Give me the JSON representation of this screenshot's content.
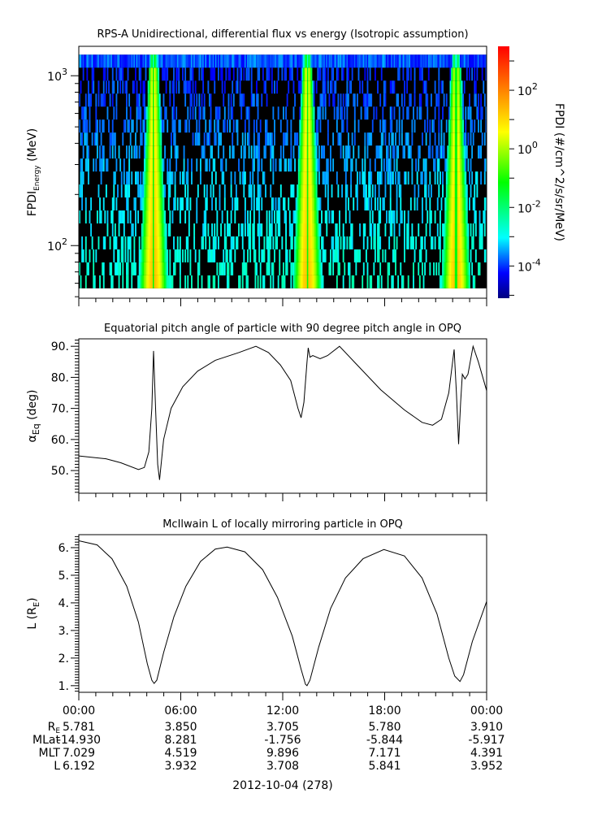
{
  "chart_data": [
    {
      "type": "heatmap",
      "title": "RPS-A Unidirectional, differential flux vs energy (Isotropic assumption)",
      "ylabel_main": "FPDI",
      "ylabel_sub": "Energy",
      "ylabel_unit": "(MeV)",
      "yscale": "log",
      "ylim": [
        49,
        1490
      ],
      "energy_range_mev": [
        56,
        1330
      ],
      "energy_bins": 18,
      "yticks": [
        {
          "value": 1000,
          "base": "10",
          "exp": "3"
        },
        {
          "value": 100,
          "base": "10",
          "exp": "2"
        }
      ],
      "xlim_hours": [
        0,
        24
      ],
      "bright_band_centers_hours": [
        4.4,
        13.45,
        22.2
      ],
      "colorbar": {
        "label": "FPDI (#/cm^2/s/sr/MeV)",
        "log_range": [
          -5.1,
          3.5
        ],
        "ticks": [
          {
            "value": 2,
            "base": "10",
            "exp": "2"
          },
          {
            "value": 0,
            "base": "10",
            "exp": "0"
          },
          {
            "value": -2,
            "base": "10",
            "exp": "-2"
          },
          {
            "value": -4,
            "base": "10",
            "exp": "-4"
          }
        ],
        "colors": [
          "#00007f",
          "#0000ff",
          "#00ffff",
          "#00ff00",
          "#ffff00",
          "#ff8000",
          "#ff0000"
        ]
      }
    },
    {
      "type": "line",
      "title": "Equatorial pitch angle of particle with 90 degree pitch angle in OPQ",
      "ylabel_main": "α",
      "ylabel_sub": "Eq",
      "ylabel_unit": "(deg)",
      "ylim": [
        42.7,
        92.4
      ],
      "yticks": [
        {
          "value": 90,
          "label": "90."
        },
        {
          "value": 80,
          "label": "80."
        },
        {
          "value": 70,
          "label": "70."
        },
        {
          "value": 60,
          "label": "60."
        },
        {
          "value": 50,
          "label": "50."
        }
      ],
      "x_hours": [
        0,
        1.6,
        2.47,
        3.51,
        3.86,
        4.12,
        4.3,
        4.4,
        4.52,
        4.64,
        4.75,
        4.99,
        5.43,
        6.12,
        6.99,
        8.03,
        9.43,
        10.42,
        11.16,
        11.86,
        12.47,
        12.9,
        13.08,
        13.25,
        13.43,
        13.5,
        13.6,
        13.77,
        14.2,
        14.64,
        15.34,
        16.38,
        17.77,
        19.16,
        20.2,
        20.82,
        21.34,
        21.77,
        22.09,
        22.22,
        22.35,
        22.47,
        22.57,
        22.73,
        22.9,
        23.2,
        23.51,
        24
      ],
      "y": [
        54.7,
        53.8,
        52.5,
        50.3,
        51,
        56,
        70,
        88.5,
        70,
        52,
        47,
        60,
        70,
        77,
        82,
        85.5,
        88,
        90,
        88,
        84,
        79,
        70,
        67,
        72,
        85,
        89.5,
        86.5,
        87,
        86,
        87,
        90,
        84,
        76,
        69.5,
        65.5,
        64.6,
        66.5,
        75,
        89,
        75,
        58.5,
        72,
        81,
        79.5,
        81,
        90,
        85,
        75.7
      ]
    },
    {
      "type": "line",
      "title": "McIlwain L of locally mirroring particle in OPQ",
      "ylabel_main": "L (R",
      "ylabel_sub": "E",
      "ylabel_unit": ")",
      "ylim": [
        0.76,
        6.47
      ],
      "yticks": [
        {
          "value": 6,
          "label": "6."
        },
        {
          "value": 5,
          "label": "5."
        },
        {
          "value": 4,
          "label": "4."
        },
        {
          "value": 3,
          "label": "3."
        },
        {
          "value": 2,
          "label": "2."
        },
        {
          "value": 1,
          "label": "1."
        }
      ],
      "x_hours": [
        0,
        1.08,
        1.95,
        2.82,
        3.51,
        4.03,
        4.3,
        4.43,
        4.59,
        4.99,
        5.6,
        6.3,
        7.16,
        8.03,
        8.73,
        9.77,
        10.82,
        11.69,
        12.56,
        13.08,
        13.34,
        13.43,
        13.6,
        14.12,
        14.82,
        15.69,
        16.73,
        17.95,
        19.16,
        20.2,
        21.08,
        21.77,
        22.12,
        22.43,
        22.64,
        23.16,
        24
      ],
      "y": [
        6.25,
        6.1,
        5.6,
        4.6,
        3.3,
        1.8,
        1.2,
        1.08,
        1.2,
        2.2,
        3.5,
        4.6,
        5.5,
        5.95,
        6.02,
        5.85,
        5.2,
        4.2,
        2.8,
        1.6,
        1.05,
        1.0,
        1.2,
        2.4,
        3.8,
        4.9,
        5.6,
        5.93,
        5.7,
        4.9,
        3.6,
        2.0,
        1.35,
        1.15,
        1.4,
        2.6,
        4.05
      ]
    }
  ],
  "ephemeris": {
    "times": [
      "00:00",
      "06:00",
      "12:00",
      "18:00",
      "00:00"
    ],
    "rows": [
      {
        "label_main": "R",
        "label_sub": "E",
        "values": [
          "5.781",
          "3.850",
          "3.705",
          "5.780",
          "3.910"
        ]
      },
      {
        "label_main": "MLat",
        "label_sub": "",
        "values": [
          "-14.930",
          "8.281",
          "-1.756",
          "-5.844",
          "-5.917"
        ]
      },
      {
        "label_main": "MLT",
        "label_sub": "",
        "values": [
          "7.029",
          "4.519",
          "9.896",
          "7.171",
          "4.391"
        ]
      },
      {
        "label_main": "L",
        "label_sub": "",
        "values": [
          "6.192",
          "3.932",
          "3.708",
          "5.841",
          "3.952"
        ]
      }
    ],
    "date": "2012-10-04 (278)"
  }
}
